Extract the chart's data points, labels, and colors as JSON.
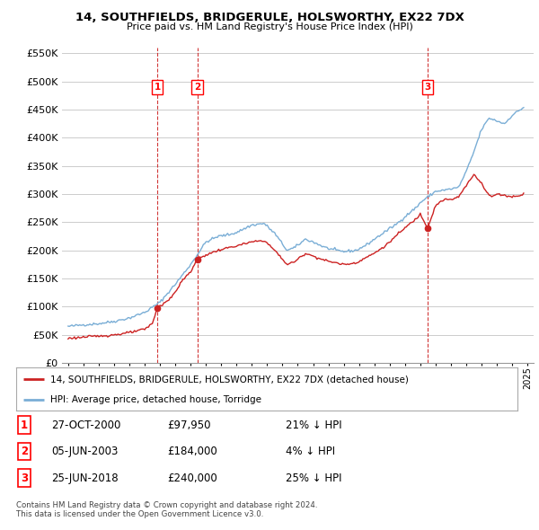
{
  "title": "14, SOUTHFIELDS, BRIDGERULE, HOLSWORTHY, EX22 7DX",
  "subtitle": "Price paid vs. HM Land Registry's House Price Index (HPI)",
  "legend_line1": "14, SOUTHFIELDS, BRIDGERULE, HOLSWORTHY, EX22 7DX (detached house)",
  "legend_line2": "HPI: Average price, detached house, Torridge",
  "footer1": "Contains HM Land Registry data © Crown copyright and database right 2024.",
  "footer2": "This data is licensed under the Open Government Licence v3.0.",
  "transactions": [
    {
      "num": 1,
      "date": "27-OCT-2000",
      "price": "£97,950",
      "pct": "21% ↓ HPI",
      "x_year": 2000.82,
      "y_val": 97950
    },
    {
      "num": 2,
      "date": "05-JUN-2003",
      "price": "£184,000",
      "pct": "4% ↓ HPI",
      "x_year": 2003.43,
      "y_val": 184000
    },
    {
      "num": 3,
      "date": "25-JUN-2018",
      "price": "£240,000",
      "pct": "25% ↓ HPI",
      "x_year": 2018.48,
      "y_val": 240000
    }
  ],
  "vline_years": [
    2000.82,
    2003.43,
    2018.48
  ],
  "ylim": [
    0,
    560000
  ],
  "xlim_start": 1994.6,
  "xlim_end": 2025.4,
  "hpi_color": "#7aaed6",
  "price_color": "#cc2222",
  "vline_color": "#cc2222",
  "background_color": "#ffffff",
  "grid_color": "#cccccc"
}
